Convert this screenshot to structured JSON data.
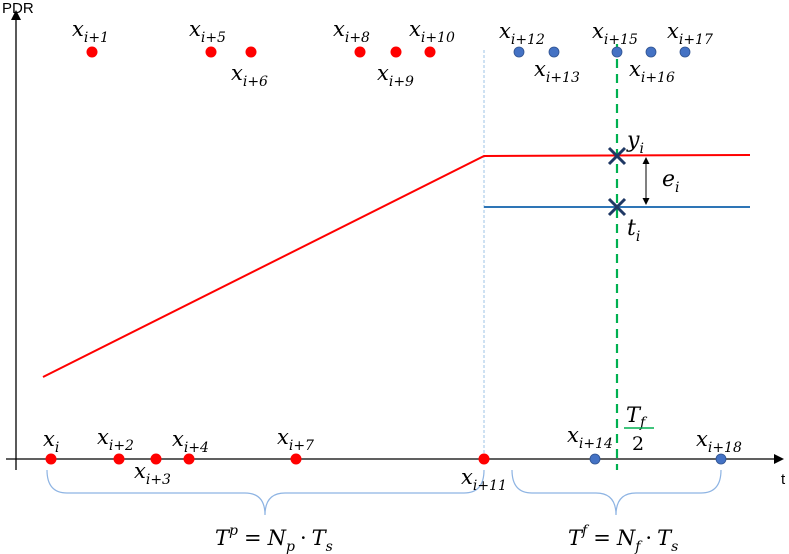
{
  "axes": {
    "y_name": "PDR",
    "x_name": "t"
  },
  "colors": {
    "past_point": "#ff0000",
    "future_point": "#4472c4",
    "prediction_line": "#ff0000",
    "truth_line": "#2e75b6",
    "half_window_line": "#00b050",
    "boundary_line": "#9dc3e6",
    "brace": "#8eb4e3",
    "marker": "#1f3864"
  },
  "samples": [
    {
      "base": "x",
      "sub": "i",
      "row": "bottom",
      "group": "past"
    },
    {
      "base": "x",
      "sub": "i+1",
      "row": "top",
      "group": "past"
    },
    {
      "base": "x",
      "sub": "i+2",
      "row": "bottom",
      "group": "past"
    },
    {
      "base": "x",
      "sub": "i+3",
      "row": "bottom",
      "group": "past"
    },
    {
      "base": "x",
      "sub": "i+4",
      "row": "bottom",
      "group": "past"
    },
    {
      "base": "x",
      "sub": "i+5",
      "row": "top",
      "group": "past"
    },
    {
      "base": "x",
      "sub": "i+6",
      "row": "top",
      "group": "past"
    },
    {
      "base": "x",
      "sub": "i+7",
      "row": "bottom",
      "group": "past"
    },
    {
      "base": "x",
      "sub": "i+8",
      "row": "top",
      "group": "past"
    },
    {
      "base": "x",
      "sub": "i+9",
      "row": "top",
      "group": "past"
    },
    {
      "base": "x",
      "sub": "i+10",
      "row": "top",
      "group": "past"
    },
    {
      "base": "x",
      "sub": "i+11",
      "row": "bottom",
      "group": "past"
    },
    {
      "base": "x",
      "sub": "i+12",
      "row": "top",
      "group": "future"
    },
    {
      "base": "x",
      "sub": "i+13",
      "row": "top",
      "group": "future"
    },
    {
      "base": "x",
      "sub": "i+14",
      "row": "bottom",
      "group": "future"
    },
    {
      "base": "x",
      "sub": "i+15",
      "row": "top",
      "group": "future"
    },
    {
      "base": "x",
      "sub": "i+16",
      "row": "top",
      "group": "future"
    },
    {
      "base": "x",
      "sub": "i+17",
      "row": "top",
      "group": "future"
    },
    {
      "base": "x",
      "sub": "i+18",
      "row": "bottom",
      "group": "future"
    }
  ],
  "prediction": {
    "base": "y",
    "sub": "i"
  },
  "truth": {
    "base": "t",
    "sub": "i"
  },
  "error": {
    "base": "e",
    "sub": "i"
  },
  "half_window": {
    "numerator": "T",
    "numerator_sub": "f",
    "denominator": "2"
  },
  "windows": {
    "past": {
      "lhs": "T",
      "lhs_sup": "p",
      "equals": "=",
      "n": "N",
      "n_sub": "p",
      "dot": "·",
      "ts": "T",
      "ts_sub": "s"
    },
    "future": {
      "lhs": "T",
      "lhs_sup": "f",
      "equals": "=",
      "n": "N",
      "n_sub": "f",
      "dot": "·",
      "ts": "T",
      "ts_sub": "s"
    }
  }
}
